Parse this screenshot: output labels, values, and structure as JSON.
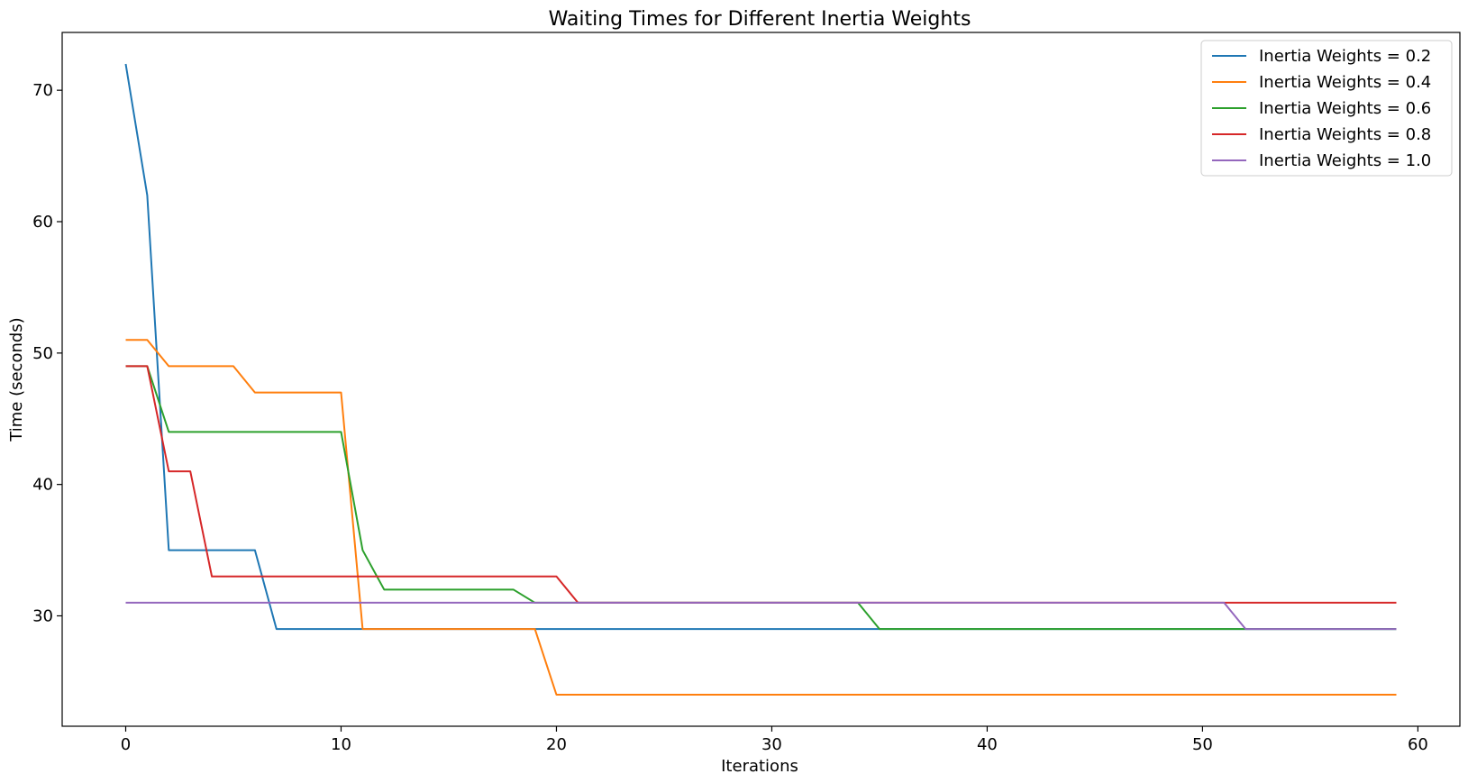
{
  "chart_data": {
    "type": "line",
    "title": "Waiting Times for Different Inertia Weights",
    "xlabel": "Iterations",
    "ylabel": "Time (seconds)",
    "xlim": [
      -2.95,
      61.95
    ],
    "ylim": [
      21.6,
      74.4
    ],
    "xticks": [
      0,
      10,
      20,
      30,
      40,
      50,
      60
    ],
    "yticks": [
      30,
      40,
      50,
      60,
      70
    ],
    "grid": false,
    "legend_position": "top-right",
    "x": [
      0,
      1,
      2,
      3,
      4,
      5,
      6,
      7,
      8,
      9,
      10,
      11,
      12,
      13,
      14,
      15,
      16,
      17,
      18,
      19,
      20,
      21,
      22,
      23,
      24,
      25,
      26,
      27,
      28,
      29,
      30,
      31,
      32,
      33,
      34,
      35,
      36,
      37,
      38,
      39,
      40,
      41,
      42,
      43,
      44,
      45,
      46,
      47,
      48,
      49,
      50,
      51,
      52,
      53,
      54,
      55,
      56,
      57,
      58,
      59
    ],
    "series": [
      {
        "name": "Inertia Weights = 0.2",
        "color": "#1f77b4",
        "values": [
          72,
          62,
          35,
          35,
          35,
          35,
          35,
          29,
          29,
          29,
          29,
          29,
          29,
          29,
          29,
          29,
          29,
          29,
          29,
          29,
          29,
          29,
          29,
          29,
          29,
          29,
          29,
          29,
          29,
          29,
          29,
          29,
          29,
          29,
          29,
          29,
          29,
          29,
          29,
          29,
          29,
          29,
          29,
          29,
          29,
          29,
          29,
          29,
          29,
          29,
          29,
          29,
          29,
          29,
          29,
          29,
          29,
          29,
          29,
          29
        ]
      },
      {
        "name": "Inertia Weights = 0.4",
        "color": "#ff7f0e",
        "values": [
          51,
          51,
          49,
          49,
          49,
          49,
          47,
          47,
          47,
          47,
          47,
          29,
          29,
          29,
          29,
          29,
          29,
          29,
          29,
          29,
          24,
          24,
          24,
          24,
          24,
          24,
          24,
          24,
          24,
          24,
          24,
          24,
          24,
          24,
          24,
          24,
          24,
          24,
          24,
          24,
          24,
          24,
          24,
          24,
          24,
          24,
          24,
          24,
          24,
          24,
          24,
          24,
          24,
          24,
          24,
          24,
          24,
          24,
          24,
          24
        ]
      },
      {
        "name": "Inertia Weights = 0.6",
        "color": "#2ca02c",
        "values": [
          49,
          49,
          44,
          44,
          44,
          44,
          44,
          44,
          44,
          44,
          44,
          35,
          32,
          32,
          32,
          32,
          32,
          32,
          32,
          31,
          31,
          31,
          31,
          31,
          31,
          31,
          31,
          31,
          31,
          31,
          31,
          31,
          31,
          31,
          31,
          29,
          29,
          29,
          29,
          29,
          29,
          29,
          29,
          29,
          29,
          29,
          29,
          29,
          29,
          29,
          29,
          29,
          29,
          29,
          29,
          29,
          29,
          29,
          29,
          29
        ]
      },
      {
        "name": "Inertia Weights = 0.8",
        "color": "#d62728",
        "values": [
          49,
          49,
          41,
          41,
          33,
          33,
          33,
          33,
          33,
          33,
          33,
          33,
          33,
          33,
          33,
          33,
          33,
          33,
          33,
          33,
          33,
          31,
          31,
          31,
          31,
          31,
          31,
          31,
          31,
          31,
          31,
          31,
          31,
          31,
          31,
          31,
          31,
          31,
          31,
          31,
          31,
          31,
          31,
          31,
          31,
          31,
          31,
          31,
          31,
          31,
          31,
          31,
          31,
          31,
          31,
          31,
          31,
          31,
          31,
          31
        ]
      },
      {
        "name": "Inertia Weights = 1.0",
        "color": "#9467bd",
        "values": [
          31,
          31,
          31,
          31,
          31,
          31,
          31,
          31,
          31,
          31,
          31,
          31,
          31,
          31,
          31,
          31,
          31,
          31,
          31,
          31,
          31,
          31,
          31,
          31,
          31,
          31,
          31,
          31,
          31,
          31,
          31,
          31,
          31,
          31,
          31,
          31,
          31,
          31,
          31,
          31,
          31,
          31,
          31,
          31,
          31,
          31,
          31,
          31,
          31,
          31,
          31,
          31,
          29,
          29,
          29,
          29,
          29,
          29,
          29,
          29
        ]
      }
    ]
  }
}
